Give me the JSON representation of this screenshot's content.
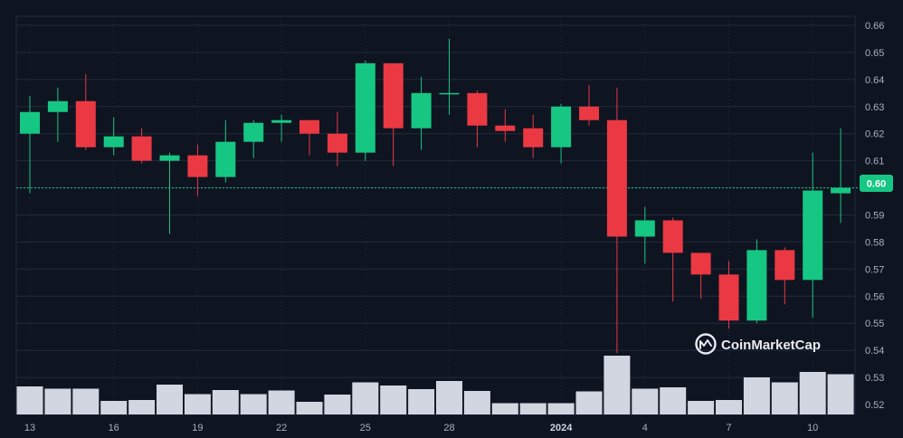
{
  "chart_data": {
    "type": "candlestick",
    "watermark": "CoinMarketCap",
    "current_price_label": "0.60",
    "current_price": 0.6,
    "ylim": [
      0.515,
      0.665
    ],
    "y_ticks": [
      "0.66",
      "0.65",
      "0.64",
      "0.63",
      "0.62",
      "0.61",
      "0.60",
      "0.59",
      "0.58",
      "0.57",
      "0.56",
      "0.55",
      "0.54",
      "0.53",
      "0.52"
    ],
    "x_ticks": [
      {
        "label": "13",
        "index": 0
      },
      {
        "label": "16",
        "index": 3
      },
      {
        "label": "19",
        "index": 6
      },
      {
        "label": "22",
        "index": 9
      },
      {
        "label": "25",
        "index": 12
      },
      {
        "label": "28",
        "index": 15
      },
      {
        "label": "2024",
        "index": 19,
        "strong": true
      },
      {
        "label": "4",
        "index": 22
      },
      {
        "label": "7",
        "index": 25
      },
      {
        "label": "10",
        "index": 28
      }
    ],
    "candles": [
      {
        "o": 0.62,
        "h": 0.634,
        "l": 0.598,
        "c": 0.628
      },
      {
        "o": 0.628,
        "h": 0.637,
        "l": 0.617,
        "c": 0.632
      },
      {
        "o": 0.632,
        "h": 0.642,
        "l": 0.614,
        "c": 0.615
      },
      {
        "o": 0.615,
        "h": 0.626,
        "l": 0.612,
        "c": 0.619
      },
      {
        "o": 0.619,
        "h": 0.622,
        "l": 0.609,
        "c": 0.61
      },
      {
        "o": 0.61,
        "h": 0.613,
        "l": 0.583,
        "c": 0.612
      },
      {
        "o": 0.612,
        "h": 0.616,
        "l": 0.597,
        "c": 0.604
      },
      {
        "o": 0.604,
        "h": 0.625,
        "l": 0.602,
        "c": 0.617
      },
      {
        "o": 0.617,
        "h": 0.625,
        "l": 0.611,
        "c": 0.624
      },
      {
        "o": 0.624,
        "h": 0.627,
        "l": 0.617,
        "c": 0.625
      },
      {
        "o": 0.625,
        "h": 0.625,
        "l": 0.612,
        "c": 0.62
      },
      {
        "o": 0.62,
        "h": 0.628,
        "l": 0.608,
        "c": 0.613
      },
      {
        "o": 0.613,
        "h": 0.647,
        "l": 0.61,
        "c": 0.646
      },
      {
        "o": 0.646,
        "h": 0.646,
        "l": 0.608,
        "c": 0.622
      },
      {
        "o": 0.622,
        "h": 0.641,
        "l": 0.614,
        "c": 0.635
      },
      {
        "o": 0.635,
        "h": 0.655,
        "l": 0.627,
        "c": 0.635
      },
      {
        "o": 0.635,
        "h": 0.636,
        "l": 0.615,
        "c": 0.623
      },
      {
        "o": 0.623,
        "h": 0.629,
        "l": 0.617,
        "c": 0.621
      },
      {
        "o": 0.622,
        "h": 0.627,
        "l": 0.611,
        "c": 0.615
      },
      {
        "o": 0.615,
        "h": 0.631,
        "l": 0.609,
        "c": 0.63
      },
      {
        "o": 0.63,
        "h": 0.638,
        "l": 0.623,
        "c": 0.625
      },
      {
        "o": 0.625,
        "h": 0.637,
        "l": 0.539,
        "c": 0.582
      },
      {
        "o": 0.582,
        "h": 0.593,
        "l": 0.572,
        "c": 0.588
      },
      {
        "o": 0.588,
        "h": 0.589,
        "l": 0.558,
        "c": 0.576
      },
      {
        "o": 0.576,
        "h": 0.576,
        "l": 0.559,
        "c": 0.568
      },
      {
        "o": 0.568,
        "h": 0.573,
        "l": 0.548,
        "c": 0.551
      },
      {
        "o": 0.551,
        "h": 0.581,
        "l": 0.55,
        "c": 0.577
      },
      {
        "o": 0.577,
        "h": 0.578,
        "l": 0.557,
        "c": 0.566
      },
      {
        "o": 0.566,
        "h": 0.613,
        "l": 0.552,
        "c": 0.599
      },
      {
        "o": 0.598,
        "h": 0.622,
        "l": 0.587,
        "c": 0.6
      }
    ],
    "volume": [
      6.2,
      5.7,
      5.7,
      3.0,
      3.2,
      6.6,
      4.5,
      5.4,
      4.5,
      5.3,
      2.8,
      4.4,
      7.1,
      6.4,
      5.6,
      7.4,
      5.2,
      2.5,
      2.5,
      2.5,
      5.1,
      13.0,
      5.7,
      6.0,
      3.0,
      3.2,
      8.2,
      7.1,
      9.4,
      8.9
    ],
    "colors": {
      "up": "#16c784",
      "down": "#ea3943",
      "volume": "#d1d6e1",
      "grid": "#222a3b",
      "background": "#0f1421",
      "price_line": "#16c784"
    }
  }
}
